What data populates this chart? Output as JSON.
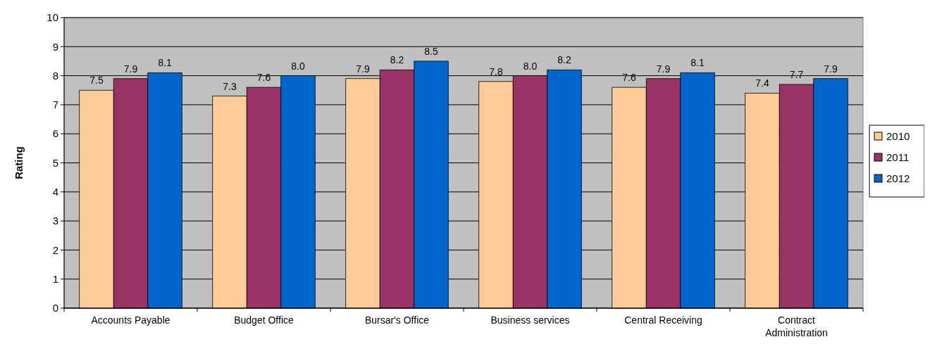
{
  "chart_data": {
    "type": "bar",
    "ylabel": "Rating",
    "categories": [
      "Accounts Payable",
      "Budget Office",
      "Bursar's Office",
      "Business services",
      "Central Receiving",
      "Contract Administration"
    ],
    "series": [
      {
        "name": "2010",
        "color": "#ffcc99",
        "values": [
          7.5,
          7.3,
          7.9,
          7.8,
          7.6,
          7.4
        ],
        "value_labels": [
          "7.5",
          "7.3",
          "7.9",
          "7.8",
          "7.6",
          "7.4"
        ]
      },
      {
        "name": "2011",
        "color": "#993366",
        "values": [
          7.9,
          7.6,
          8.2,
          8.0,
          7.9,
          7.7
        ],
        "value_labels": [
          "7.9",
          "7.6",
          "8.2",
          "8.0",
          "7.9",
          "7.7"
        ]
      },
      {
        "name": "2012",
        "color": "#0066cc",
        "values": [
          8.1,
          8.0,
          8.5,
          8.2,
          8.1,
          7.9
        ],
        "value_labels": [
          "8.1",
          "8.0",
          "8.5",
          "8.2",
          "8.1",
          "7.9"
        ]
      }
    ],
    "ylim": [
      0,
      10
    ],
    "yticks": [
      0,
      1,
      2,
      3,
      4,
      5,
      6,
      7,
      8,
      9,
      10
    ],
    "grid": "y",
    "legend": "right"
  }
}
